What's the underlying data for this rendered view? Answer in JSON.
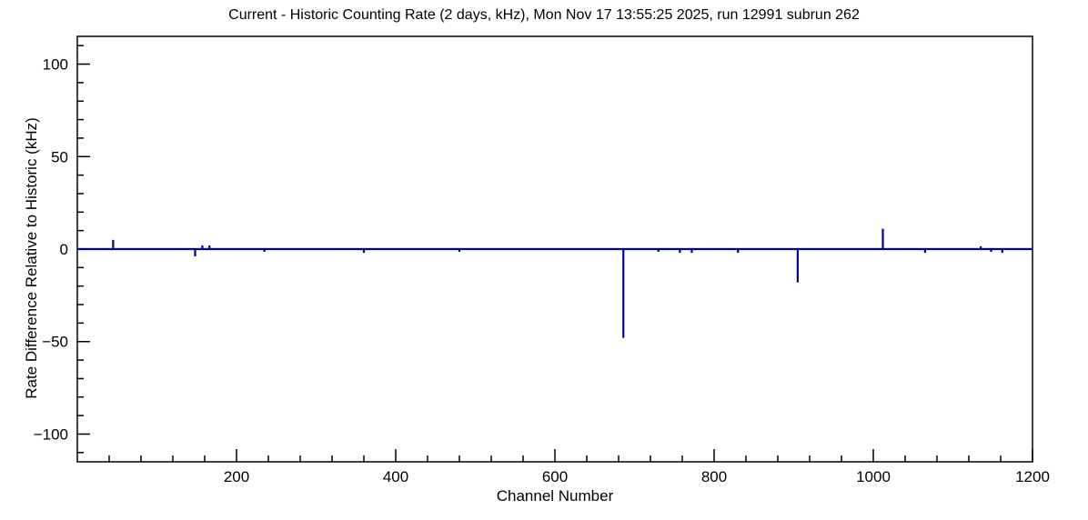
{
  "chart_data": {
    "type": "line",
    "title": "Current - Historic Counting Rate (2 days, kHz), Mon Nov 17 13:55:25 2025, run 12991 subrun 262",
    "xlabel": "Channel Number",
    "ylabel": "Rate Difference Relative to Historic (kHz)",
    "xlim": [
      0,
      1200
    ],
    "ylim": [
      -115,
      115
    ],
    "x_major_ticks": [
      200,
      400,
      600,
      800,
      1000,
      1200
    ],
    "x_minor_step": 40,
    "y_major_ticks": [
      -100,
      -50,
      0,
      50,
      100
    ],
    "y_minor_step": 10,
    "baseline": 0,
    "grid": false,
    "legend_position": "none",
    "line_color": "#00009c",
    "axis_color": "#000000",
    "background": "#ffffff",
    "spikes": [
      {
        "channel": 45,
        "value": 5
      },
      {
        "channel": 148,
        "value": -4
      },
      {
        "channel": 157,
        "value": 2
      },
      {
        "channel": 166,
        "value": 2
      },
      {
        "channel": 235,
        "value": -1.5
      },
      {
        "channel": 360,
        "value": -2
      },
      {
        "channel": 480,
        "value": -1.5
      },
      {
        "channel": 686,
        "value": -48
      },
      {
        "channel": 730,
        "value": -1.5
      },
      {
        "channel": 757,
        "value": -2
      },
      {
        "channel": 772,
        "value": -2
      },
      {
        "channel": 830,
        "value": -2
      },
      {
        "channel": 905,
        "value": -18
      },
      {
        "channel": 1012,
        "value": 11
      },
      {
        "channel": 1065,
        "value": -2
      },
      {
        "channel": 1135,
        "value": 1.5
      },
      {
        "channel": 1148,
        "value": -1.5
      },
      {
        "channel": 1162,
        "value": -2
      }
    ]
  }
}
